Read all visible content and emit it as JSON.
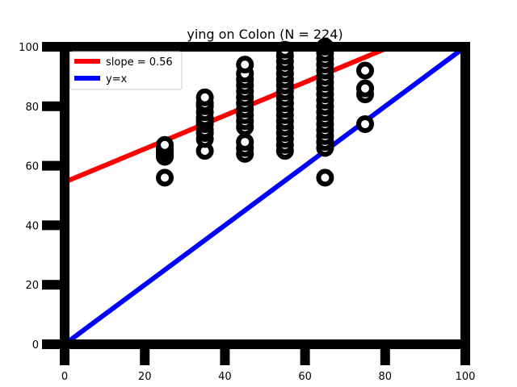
{
  "chart_data": {
    "type": "scatter",
    "title": "ying on Colon (N = 224)",
    "xlabel": "",
    "ylabel": "",
    "xlim": [
      0,
      100
    ],
    "ylim": [
      0,
      100
    ],
    "x_ticks": [
      "0",
      "20",
      "40",
      "60",
      "80",
      "100"
    ],
    "y_ticks": [
      "0",
      "20",
      "40",
      "60",
      "80",
      "100"
    ],
    "grid": false,
    "legend_position": "top-left",
    "legend": [
      {
        "label": "slope = 0.56",
        "color": "#ff0000"
      },
      {
        "label": "y=x",
        "color": "#0000ff"
      }
    ],
    "lines": [
      {
        "name": "slope = 0.56",
        "color": "#ff0000",
        "slope": 0.56,
        "intercept": 54.5
      },
      {
        "name": "y=x",
        "color": "#0000ff",
        "slope": 1,
        "intercept": 0
      }
    ],
    "series": [
      {
        "marker_color": "#000000",
        "marker": "ring",
        "points": [
          [
            25,
            56
          ],
          [
            25,
            63
          ],
          [
            25,
            64
          ],
          [
            25,
            65
          ],
          [
            25,
            66
          ],
          [
            25,
            67
          ],
          [
            35,
            65
          ],
          [
            35,
            69
          ],
          [
            35,
            71
          ],
          [
            35,
            72
          ],
          [
            35,
            74
          ],
          [
            35,
            75
          ],
          [
            35,
            76
          ],
          [
            35,
            78
          ],
          [
            35,
            80
          ],
          [
            35,
            81
          ],
          [
            35,
            83
          ],
          [
            45,
            64
          ],
          [
            45,
            66
          ],
          [
            45,
            68
          ],
          [
            45,
            73
          ],
          [
            45,
            75
          ],
          [
            45,
            77
          ],
          [
            45,
            79
          ],
          [
            45,
            81
          ],
          [
            45,
            83
          ],
          [
            45,
            85
          ],
          [
            45,
            87
          ],
          [
            45,
            89
          ],
          [
            45,
            91
          ],
          [
            45,
            94
          ],
          [
            55,
            65
          ],
          [
            55,
            67
          ],
          [
            55,
            69
          ],
          [
            55,
            71
          ],
          [
            55,
            73
          ],
          [
            55,
            75
          ],
          [
            55,
            77
          ],
          [
            55,
            79
          ],
          [
            55,
            81
          ],
          [
            55,
            83
          ],
          [
            55,
            85
          ],
          [
            55,
            87
          ],
          [
            55,
            89
          ],
          [
            55,
            91
          ],
          [
            55,
            93
          ],
          [
            55,
            95
          ],
          [
            55,
            97
          ],
          [
            55,
            99
          ],
          [
            65,
            56
          ],
          [
            65,
            66
          ],
          [
            65,
            68
          ],
          [
            65,
            70
          ],
          [
            65,
            72
          ],
          [
            65,
            74
          ],
          [
            65,
            76
          ],
          [
            65,
            78
          ],
          [
            65,
            80
          ],
          [
            65,
            82
          ],
          [
            65,
            84
          ],
          [
            65,
            86
          ],
          [
            65,
            88
          ],
          [
            65,
            90
          ],
          [
            65,
            92
          ],
          [
            65,
            94
          ],
          [
            65,
            96
          ],
          [
            65,
            98
          ],
          [
            65,
            100
          ],
          [
            75,
            74
          ],
          [
            75,
            84
          ],
          [
            75,
            86
          ],
          [
            75,
            92
          ]
        ]
      }
    ]
  }
}
